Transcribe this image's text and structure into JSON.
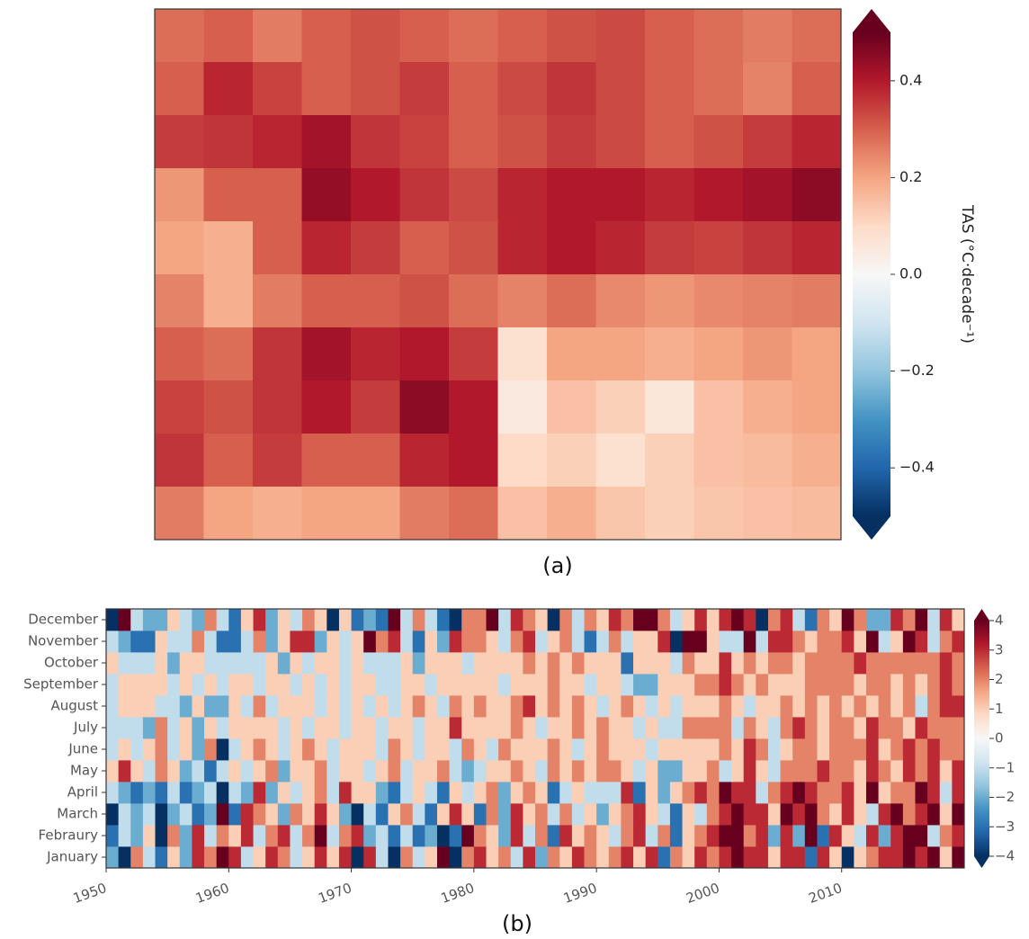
{
  "chart_data": [
    {
      "type": "map",
      "colormap": "RdBu_r",
      "caption": "(a)",
      "colorbar_label": "TAS (°C·decade⁻¹)",
      "clim": [
        -0.5,
        0.5
      ],
      "cticks": [
        {
          "value": -0.4,
          "label": "−0.4"
        },
        {
          "value": -0.2,
          "label": "−0.2"
        },
        {
          "value": 0,
          "label": "0.0"
        },
        0.2,
        0.4
      ],
      "z": [
        [
          0.28,
          0.3,
          0.26,
          0.3,
          0.32,
          0.3,
          0.28,
          0.3,
          0.32,
          0.33,
          0.3,
          0.28,
          0.26,
          0.28
        ],
        [
          0.3,
          0.38,
          0.34,
          0.3,
          0.32,
          0.35,
          0.3,
          0.33,
          0.36,
          0.33,
          0.3,
          0.28,
          0.25,
          0.3
        ],
        [
          0.35,
          0.36,
          0.38,
          0.42,
          0.36,
          0.34,
          0.3,
          0.32,
          0.35,
          0.33,
          0.3,
          0.32,
          0.35,
          0.38
        ],
        [
          0.22,
          0.3,
          0.3,
          0.44,
          0.4,
          0.36,
          0.33,
          0.38,
          0.4,
          0.4,
          0.38,
          0.4,
          0.42,
          0.45
        ],
        [
          0.2,
          0.18,
          0.3,
          0.38,
          0.35,
          0.3,
          0.32,
          0.38,
          0.4,
          0.38,
          0.35,
          0.34,
          0.36,
          0.38
        ],
        [
          0.25,
          0.18,
          0.26,
          0.3,
          0.3,
          0.32,
          0.28,
          0.25,
          0.28,
          0.24,
          0.22,
          0.24,
          0.25,
          0.26
        ],
        [
          0.3,
          0.28,
          0.36,
          0.42,
          0.38,
          0.4,
          0.35,
          0.08,
          0.2,
          0.2,
          0.18,
          0.2,
          0.22,
          0.2
        ],
        [
          0.34,
          0.32,
          0.36,
          0.4,
          0.35,
          0.45,
          0.4,
          0.05,
          0.15,
          0.12,
          0.06,
          0.15,
          0.18,
          0.2
        ],
        [
          0.36,
          0.3,
          0.35,
          0.3,
          0.3,
          0.38,
          0.4,
          0.1,
          0.12,
          0.08,
          0.12,
          0.15,
          0.16,
          0.18
        ],
        [
          0.26,
          0.2,
          0.18,
          0.2,
          0.2,
          0.26,
          0.28,
          0.15,
          0.18,
          0.14,
          0.12,
          0.14,
          0.15,
          0.16
        ]
      ]
    },
    {
      "type": "heatmap",
      "colormap": "RdBu_r",
      "caption": "(b)",
      "clim": [
        -4,
        4
      ],
      "cticks": [
        {
          "value": -4,
          "label": "−4"
        },
        {
          "value": -3,
          "label": "−3"
        },
        {
          "value": -2,
          "label": "−2"
        },
        {
          "value": -1,
          "label": "−1"
        },
        0,
        1,
        2,
        3,
        4
      ],
      "xlim": [
        1950,
        2020
      ],
      "xticks": [
        1950,
        1960,
        1970,
        1980,
        1990,
        2000,
        2010
      ],
      "y_categories": [
        "January",
        "Febraury",
        "March",
        "April",
        "May",
        "June",
        "July",
        "August",
        "September",
        "October",
        "November",
        "December"
      ],
      "x": [
        1950,
        1951,
        1952,
        1953,
        1954,
        1955,
        1956,
        1957,
        1958,
        1959,
        1960,
        1961,
        1962,
        1963,
        1964,
        1965,
        1966,
        1967,
        1968,
        1969,
        1970,
        1971,
        1972,
        1973,
        1974,
        1975,
        1976,
        1977,
        1978,
        1979,
        1980,
        1981,
        1982,
        1983,
        1984,
        1985,
        1986,
        1987,
        1988,
        1989,
        1990,
        1991,
        1992,
        1993,
        1994,
        1995,
        1996,
        1997,
        1998,
        1999,
        2000,
        2001,
        2002,
        2003,
        2004,
        2005,
        2006,
        2007,
        2008,
        2009,
        2010,
        2011,
        2012,
        2013,
        2014,
        2015,
        2016,
        2017,
        2018,
        2019
      ],
      "z": [
        [
          -2,
          -4,
          2,
          -1,
          -3,
          1,
          -2,
          3,
          2,
          4,
          3,
          -1,
          1,
          3,
          2,
          -1,
          1,
          3,
          1,
          3,
          -4,
          3,
          -1,
          -4,
          2,
          -1,
          1,
          4,
          -4,
          2,
          3,
          1,
          2,
          -1,
          3,
          -2,
          2,
          1,
          3,
          2,
          1,
          2,
          3,
          1,
          3,
          -3,
          2,
          1,
          3,
          2,
          3,
          4,
          3,
          3,
          1,
          3,
          3,
          -3,
          3,
          1,
          -4,
          1,
          2,
          3,
          3,
          4,
          3,
          4,
          1,
          4
        ],
        [
          -3,
          -1,
          -2,
          1,
          -4,
          2,
          -2,
          3,
          -1,
          2,
          1,
          3,
          -1,
          2,
          3,
          -1,
          2,
          4,
          -1,
          2,
          3,
          -2,
          -1,
          -3,
          -1,
          -3,
          -2,
          -4,
          -3,
          4,
          2,
          1,
          -2,
          3,
          -1,
          2,
          -3,
          3,
          1,
          2,
          1,
          -1,
          2,
          3,
          -1,
          2,
          -3,
          1,
          2,
          3,
          4,
          4,
          2,
          3,
          -2,
          3,
          -2,
          4,
          -3,
          3,
          1,
          -1,
          3,
          -2,
          3,
          4,
          4,
          -1,
          2,
          3
        ],
        [
          -4,
          -1,
          -2,
          -1,
          -4,
          -2,
          -1,
          -3,
          -2,
          4,
          -3,
          3,
          2,
          1,
          -2,
          2,
          1,
          3,
          1,
          -2,
          -4,
          -1,
          -3,
          1,
          2,
          -1,
          -3,
          1,
          3,
          1,
          -3,
          2,
          -2,
          3,
          1,
          2,
          -1,
          2,
          -1,
          1,
          -2,
          1,
          2,
          3,
          1,
          -1,
          -3,
          1,
          -1,
          2,
          3,
          4,
          3,
          3,
          1,
          4,
          3,
          4,
          2,
          1,
          3,
          1,
          -1,
          3,
          4,
          2,
          3,
          4,
          1,
          4
        ],
        [
          -1,
          -2,
          -3,
          -2,
          -3,
          -1,
          -3,
          -2,
          -1,
          -4,
          -1,
          -2,
          3,
          -2,
          1,
          -1,
          1,
          2,
          -1,
          3,
          1,
          1,
          -2,
          -3,
          -1,
          1,
          -1,
          -3,
          1,
          -1,
          1,
          2,
          -2,
          1,
          2,
          1,
          -3,
          -1,
          1,
          -1,
          -1,
          -1,
          3,
          -3,
          1,
          -2,
          1,
          2,
          3,
          2,
          4,
          3,
          3,
          -1,
          2,
          3,
          4,
          3,
          2,
          2,
          3,
          1,
          4,
          1,
          2,
          2,
          4,
          3,
          -1,
          3
        ],
        [
          1,
          3,
          1,
          -1,
          2,
          1,
          -2,
          -1,
          -3,
          -1,
          1,
          -1,
          1,
          2,
          -2,
          1,
          1,
          2,
          -1,
          1,
          1,
          -1,
          1,
          2,
          -1,
          1,
          1,
          2,
          -1,
          -2,
          -1,
          1,
          1,
          2,
          1,
          -1,
          2,
          1,
          2,
          1,
          2,
          2,
          1,
          -1,
          1,
          -2,
          -2,
          1,
          1,
          2,
          -1,
          1,
          3,
          1,
          -1,
          2,
          2,
          2,
          3,
          2,
          2,
          1,
          3,
          2,
          1,
          3,
          2,
          3,
          1,
          3
        ],
        [
          -1,
          1,
          -1,
          1,
          2,
          -1,
          1,
          -2,
          2,
          -4,
          -1,
          1,
          2,
          1,
          -1,
          1,
          2,
          1,
          -1,
          1,
          1,
          1,
          -1,
          2,
          1,
          -1,
          1,
          1,
          -1,
          2,
          1,
          -1,
          2,
          1,
          1,
          1,
          2,
          1,
          -1,
          1,
          2,
          1,
          1,
          1,
          -1,
          1,
          1,
          1,
          1,
          1,
          2,
          1,
          3,
          2,
          -1,
          1,
          2,
          2,
          1,
          2,
          2,
          2,
          3,
          1,
          2,
          3,
          2,
          3,
          2,
          2
        ],
        [
          -1,
          -1,
          -1,
          -2,
          2,
          -1,
          1,
          -2,
          1,
          -1,
          1,
          1,
          1,
          1,
          -1,
          1,
          -1,
          1,
          1,
          -1,
          1,
          1,
          -1,
          1,
          1,
          -1,
          1,
          1,
          3,
          1,
          1,
          1,
          1,
          2,
          1,
          -1,
          1,
          1,
          2,
          1,
          2,
          1,
          1,
          -1,
          1,
          -1,
          -1,
          2,
          2,
          2,
          2,
          -1,
          2,
          1,
          -1,
          2,
          3,
          2,
          1,
          2,
          2,
          1,
          3,
          2,
          2,
          1,
          3,
          2,
          2,
          2
        ],
        [
          -1,
          1,
          1,
          1,
          -1,
          -1,
          -2,
          1,
          -2,
          -2,
          1,
          -1,
          2,
          -1,
          1,
          1,
          1,
          -1,
          1,
          -1,
          1,
          -1,
          1,
          -1,
          1,
          2,
          1,
          -1,
          2,
          1,
          2,
          1,
          1,
          2,
          3,
          1,
          2,
          1,
          2,
          1,
          -1,
          1,
          2,
          1,
          -1,
          1,
          -1,
          1,
          1,
          1,
          2,
          1,
          -1,
          1,
          1,
          2,
          1,
          2,
          1,
          2,
          1,
          2,
          1,
          2,
          1,
          2,
          -1,
          2,
          3,
          3
        ],
        [
          -1,
          1,
          1,
          1,
          1,
          -1,
          1,
          -1,
          1,
          -1,
          1,
          1,
          -1,
          1,
          1,
          -1,
          1,
          -1,
          1,
          -1,
          1,
          1,
          -1,
          -1,
          1,
          1,
          -1,
          1,
          1,
          1,
          1,
          1,
          -1,
          1,
          1,
          1,
          2,
          1,
          1,
          -1,
          1,
          1,
          -1,
          -2,
          -2,
          1,
          1,
          1,
          2,
          2,
          3,
          2,
          1,
          2,
          1,
          1,
          1,
          2,
          2,
          2,
          2,
          1,
          2,
          2,
          1,
          2,
          1,
          2,
          3,
          2
        ],
        [
          1,
          -1,
          -1,
          -1,
          1,
          -2,
          1,
          1,
          -1,
          -1,
          -1,
          -1,
          -1,
          1,
          -2,
          1,
          -1,
          1,
          1,
          -1,
          1,
          -1,
          -1,
          -1,
          1,
          -2,
          1,
          1,
          1,
          -1,
          1,
          1,
          1,
          1,
          2,
          1,
          2,
          1,
          2,
          1,
          1,
          1,
          -3,
          1,
          1,
          1,
          -1,
          2,
          1,
          1,
          3,
          1,
          2,
          1,
          2,
          2,
          1,
          2,
          2,
          2,
          2,
          3,
          2,
          2,
          2,
          2,
          2,
          2,
          3,
          2
        ],
        [
          -1,
          -2,
          -3,
          -3,
          1,
          -1,
          -1,
          2,
          -1,
          -3,
          -3,
          -1,
          2,
          -2,
          1,
          3,
          3,
          -2,
          1,
          -1,
          1,
          4,
          2,
          3,
          -1,
          -3,
          1,
          -2,
          3,
          2,
          2,
          1,
          -1,
          2,
          3,
          -1,
          1,
          2,
          -1,
          -3,
          -1,
          2,
          -1,
          1,
          1,
          3,
          -4,
          4,
          4,
          1,
          -1,
          -1,
          4,
          -1,
          3,
          3,
          2,
          1,
          2,
          2,
          3,
          1,
          4,
          -1,
          1,
          4,
          3,
          -1,
          2,
          3
        ],
        [
          -4,
          4,
          -1,
          -2,
          -2,
          1,
          -1,
          -2,
          2,
          -1,
          -3,
          1,
          3,
          -2,
          1,
          -1,
          2,
          1,
          -4,
          1,
          -3,
          -2,
          -3,
          4,
          -1,
          2,
          -1,
          -3,
          -4,
          2,
          2,
          4,
          -1,
          3,
          2,
          1,
          -4,
          2,
          -1,
          2,
          1,
          3,
          2,
          4,
          4,
          2,
          -1,
          1,
          3,
          1,
          3,
          4,
          3,
          -4,
          2,
          3,
          -1,
          -3,
          2,
          1,
          4,
          2,
          -2,
          -2,
          3,
          2,
          4,
          -1,
          3,
          1
        ]
      ]
    }
  ]
}
